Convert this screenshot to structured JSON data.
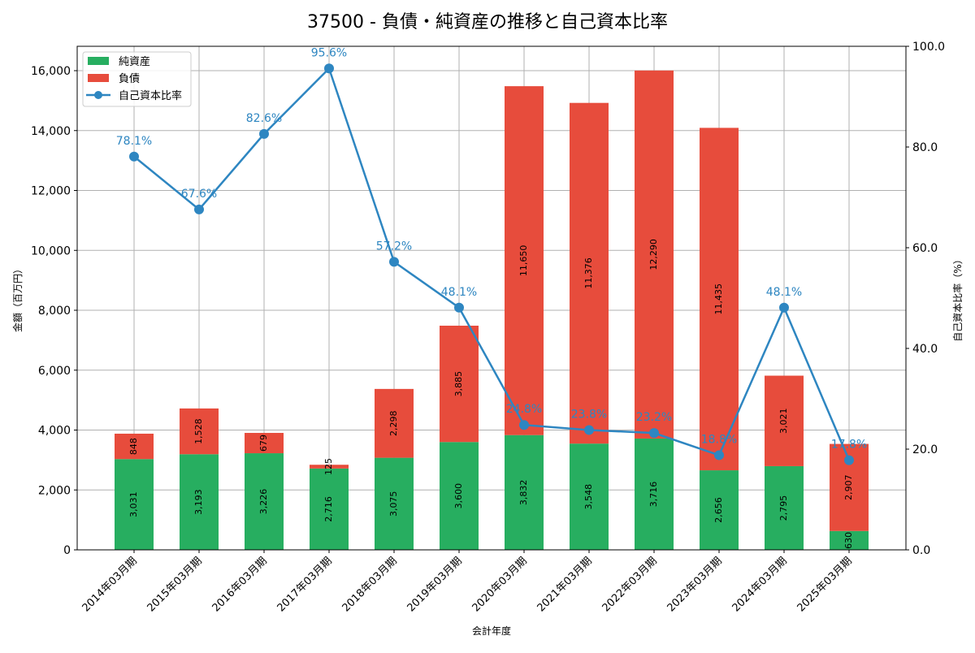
{
  "chart_data": {
    "type": "bar",
    "title": "37500 - 負債・純資産の推移と自己資本比率",
    "xlabel": "会計年度",
    "ylabel": "金額（百万円）",
    "y2label": "自己資本比率（%）",
    "ylim": [
      0,
      16814
    ],
    "y2lim": [
      0,
      100
    ],
    "yticks": [
      0,
      2000,
      4000,
      6000,
      8000,
      10000,
      12000,
      14000,
      16000
    ],
    "ytick_labels": [
      "0",
      "2,000",
      "4,000",
      "6,000",
      "8,000",
      "10,000",
      "12,000",
      "14,000",
      "16,000"
    ],
    "y2ticks": [
      0,
      20,
      40,
      60,
      80,
      100
    ],
    "y2tick_labels": [
      "0.0",
      "20.0",
      "40.0",
      "60.0",
      "80.0",
      "100.0"
    ],
    "grid": true,
    "legend_position": "top-left",
    "categories": [
      "2014年03月期",
      "2015年03月期",
      "2016年03月期",
      "2017年03月期",
      "2018年03月期",
      "2019年03月期",
      "2020年03月期",
      "2021年03月期",
      "2022年03月期",
      "2023年03月期",
      "2024年03月期",
      "2025年03月期"
    ],
    "series": [
      {
        "name": "純資産",
        "type": "bar",
        "color": "#27ae60",
        "values": [
          3031,
          3193,
          3226,
          2716,
          3075,
          3600,
          3832,
          3548,
          3716,
          2656,
          2795,
          630
        ],
        "labels": [
          "3,031",
          "3,193",
          "3,226",
          "2,716",
          "3,075",
          "3,600",
          "3,832",
          "3,548",
          "3,716",
          "2,656",
          "2,795",
          "630"
        ]
      },
      {
        "name": "負債",
        "type": "bar",
        "color": "#e74c3c",
        "values": [
          848,
          1528,
          679,
          125,
          2298,
          3885,
          11650,
          11376,
          12290,
          11435,
          3021,
          2907
        ],
        "labels": [
          "848",
          "1,528",
          "679",
          "125",
          "2,298",
          "3,885",
          "11,650",
          "11,376",
          "12,290",
          "11,435",
          "3,021",
          "2,907"
        ]
      },
      {
        "name": "自己資本比率",
        "type": "line",
        "axis": "right",
        "color": "#2e86c1",
        "values": [
          78.1,
          67.6,
          82.6,
          95.6,
          57.2,
          48.1,
          24.8,
          23.8,
          23.2,
          18.8,
          48.1,
          17.8
        ],
        "labels": [
          "78.1%",
          "67.6%",
          "82.6%",
          "95.6%",
          "57.2%",
          "48.1%",
          "24.8%",
          "23.8%",
          "23.2%",
          "18.8%",
          "48.1%",
          "17.8%"
        ]
      }
    ]
  }
}
